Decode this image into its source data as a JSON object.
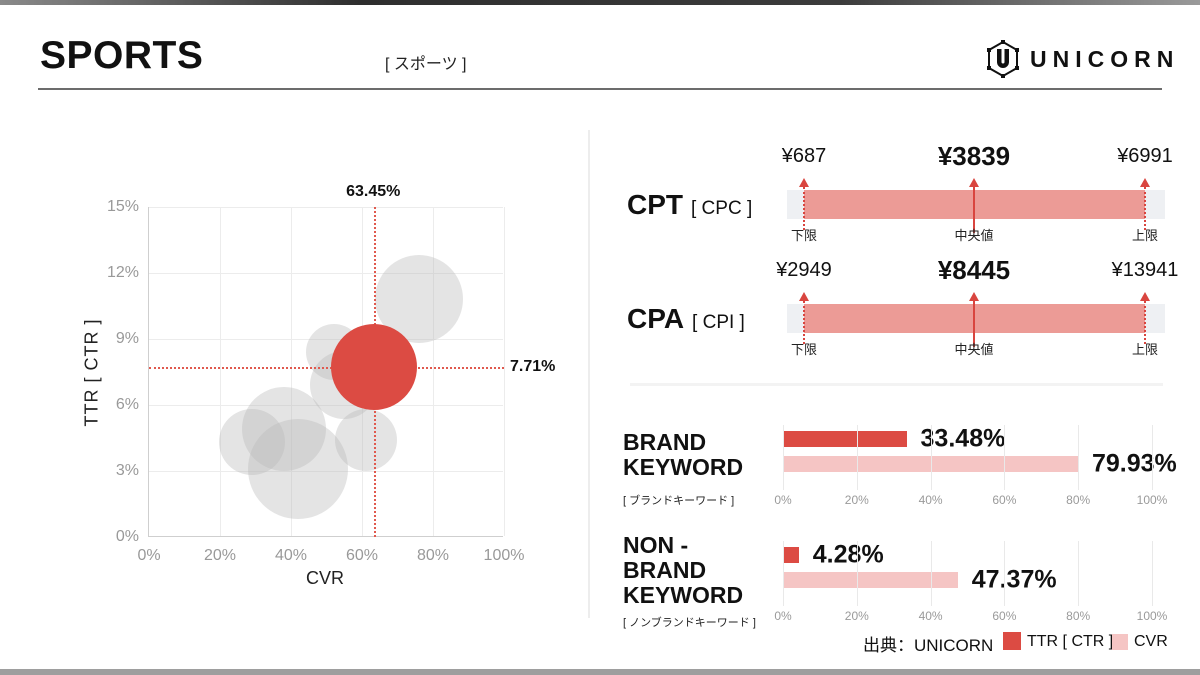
{
  "header": {
    "title": "SPORTS",
    "subtitle": "[ スポーツ ]",
    "brand": "UNICORN"
  },
  "chart_data": [
    {
      "type": "scatter",
      "title": "TTR [CTR] vs CVR bubble chart",
      "xlabel": "CVR",
      "ylabel": "TTR [ CTR ]",
      "xlim": [
        0,
        100
      ],
      "ylim": [
        0,
        15
      ],
      "grid": true,
      "x_ticks": [
        "0%",
        "20%",
        "40%",
        "60%",
        "80%",
        "100%"
      ],
      "y_ticks": [
        "0%",
        "3%",
        "6%",
        "9%",
        "12%",
        "15%"
      ],
      "highlight": {
        "cvr": 63.45,
        "ttr": 7.71,
        "r": 43,
        "x_label": "63.45%",
        "y_label": "7.71%"
      },
      "points": [
        {
          "cvr": 76,
          "ttr": 10.8,
          "r": 44
        },
        {
          "cvr": 52,
          "ttr": 8.4,
          "r": 28
        },
        {
          "cvr": 55,
          "ttr": 6.9,
          "r": 34
        },
        {
          "cvr": 38,
          "ttr": 4.9,
          "r": 42
        },
        {
          "cvr": 29,
          "ttr": 4.3,
          "r": 33
        },
        {
          "cvr": 42,
          "ttr": 3.1,
          "r": 50
        },
        {
          "cvr": 61,
          "ttr": 4.4,
          "r": 31
        }
      ]
    },
    {
      "type": "range",
      "name": "CPT",
      "sub": "[ CPC ]",
      "low": "¥687",
      "mid": "¥3839",
      "high": "¥6991",
      "low_label": "下限",
      "mid_label": "中央値",
      "high_label": "上限"
    },
    {
      "type": "range",
      "name": "CPA",
      "sub": "[ CPI ]",
      "low": "¥2949",
      "mid": "¥8445",
      "high": "¥13941",
      "low_label": "下限",
      "mid_label": "中央値",
      "high_label": "上限"
    },
    {
      "type": "bar",
      "line1": "BRAND",
      "line2": "KEYWORD",
      "jp": "[ ブランドキーワード ]",
      "xlim": [
        0,
        100
      ],
      "x_ticks": [
        "0%",
        "20%",
        "40%",
        "60%",
        "80%",
        "100%"
      ],
      "series": [
        {
          "name": "TTR [ CTR ]",
          "value": 33.48,
          "label": "33.48%"
        },
        {
          "name": "CVR",
          "value": 79.93,
          "label": "79.93%"
        }
      ]
    },
    {
      "type": "bar",
      "line1": "NON -",
      "line2": "BRAND",
      "line3": "KEYWORD",
      "jp": "[ ノンブランドキーワード ]",
      "xlim": [
        0,
        100
      ],
      "x_ticks": [
        "0%",
        "20%",
        "40%",
        "60%",
        "80%",
        "100%"
      ],
      "series": [
        {
          "name": "TTR [ CTR ]",
          "value": 4.28,
          "label": "4.28%"
        },
        {
          "name": "CVR",
          "value": 47.37,
          "label": "47.37%"
        }
      ]
    }
  ],
  "footer": {
    "source": "出典：UNICORN",
    "legend": [
      {
        "label": "TTR [ CTR ]",
        "color": "#DC4B43"
      },
      {
        "label": "CVR",
        "color": "#F5C5C4"
      }
    ]
  },
  "colors": {
    "accent_red": "#DC4B43",
    "range_fill": "#EC9B96",
    "pink": "#F5C5C4",
    "track": "#EEF0F3",
    "crosshair": "#E0594E"
  }
}
